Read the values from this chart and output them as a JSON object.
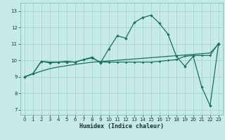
{
  "background_color": "#c5eae8",
  "grid_color": "#a8d4d1",
  "line_color": "#1a7060",
  "x_label": "Humidex (Indice chaleur)",
  "ylim": [
    6.7,
    13.5
  ],
  "xlim": [
    -0.5,
    23.5
  ],
  "yticks": [
    7,
    8,
    9,
    10,
    11,
    12,
    13
  ],
  "xticks": [
    0,
    1,
    2,
    3,
    4,
    5,
    6,
    7,
    8,
    9,
    10,
    11,
    12,
    13,
    14,
    15,
    16,
    17,
    18,
    19,
    20,
    21,
    22,
    23
  ],
  "curve1_x": [
    0,
    1,
    2,
    3,
    4,
    5,
    6,
    7,
    8,
    9,
    10,
    11,
    12,
    13,
    14,
    15,
    16,
    17,
    18,
    19,
    20,
    21,
    22,
    23
  ],
  "curve1_y": [
    9.0,
    9.2,
    9.95,
    9.85,
    9.9,
    9.9,
    9.9,
    10.05,
    10.2,
    9.85,
    10.7,
    11.5,
    11.35,
    12.3,
    12.6,
    12.75,
    12.25,
    11.6,
    10.25,
    9.65,
    10.25,
    8.4,
    7.25,
    11.0
  ],
  "curve2_x": [
    0,
    1,
    2,
    3,
    4,
    5,
    6,
    7,
    8,
    9,
    10,
    11,
    12,
    13,
    14,
    15,
    16,
    17,
    18,
    19,
    20,
    21,
    22,
    23
  ],
  "curve2_y": [
    9.0,
    9.2,
    9.95,
    9.9,
    9.9,
    9.95,
    9.9,
    10.05,
    10.15,
    9.9,
    9.9,
    9.9,
    9.9,
    9.9,
    9.9,
    9.9,
    9.95,
    10.0,
    10.05,
    10.25,
    10.3,
    10.3,
    10.3,
    11.05
  ],
  "curve3_x": [
    0,
    1,
    2,
    3,
    4,
    5,
    6,
    7,
    8,
    9,
    10,
    11,
    12,
    13,
    14,
    15,
    16,
    17,
    18,
    19,
    20,
    21,
    22,
    23
  ],
  "curve3_y": [
    9.0,
    9.18,
    9.35,
    9.5,
    9.6,
    9.68,
    9.76,
    9.83,
    9.89,
    9.93,
    9.97,
    10.01,
    10.05,
    10.09,
    10.13,
    10.17,
    10.21,
    10.25,
    10.29,
    10.33,
    10.37,
    10.41,
    10.45,
    11.0
  ]
}
